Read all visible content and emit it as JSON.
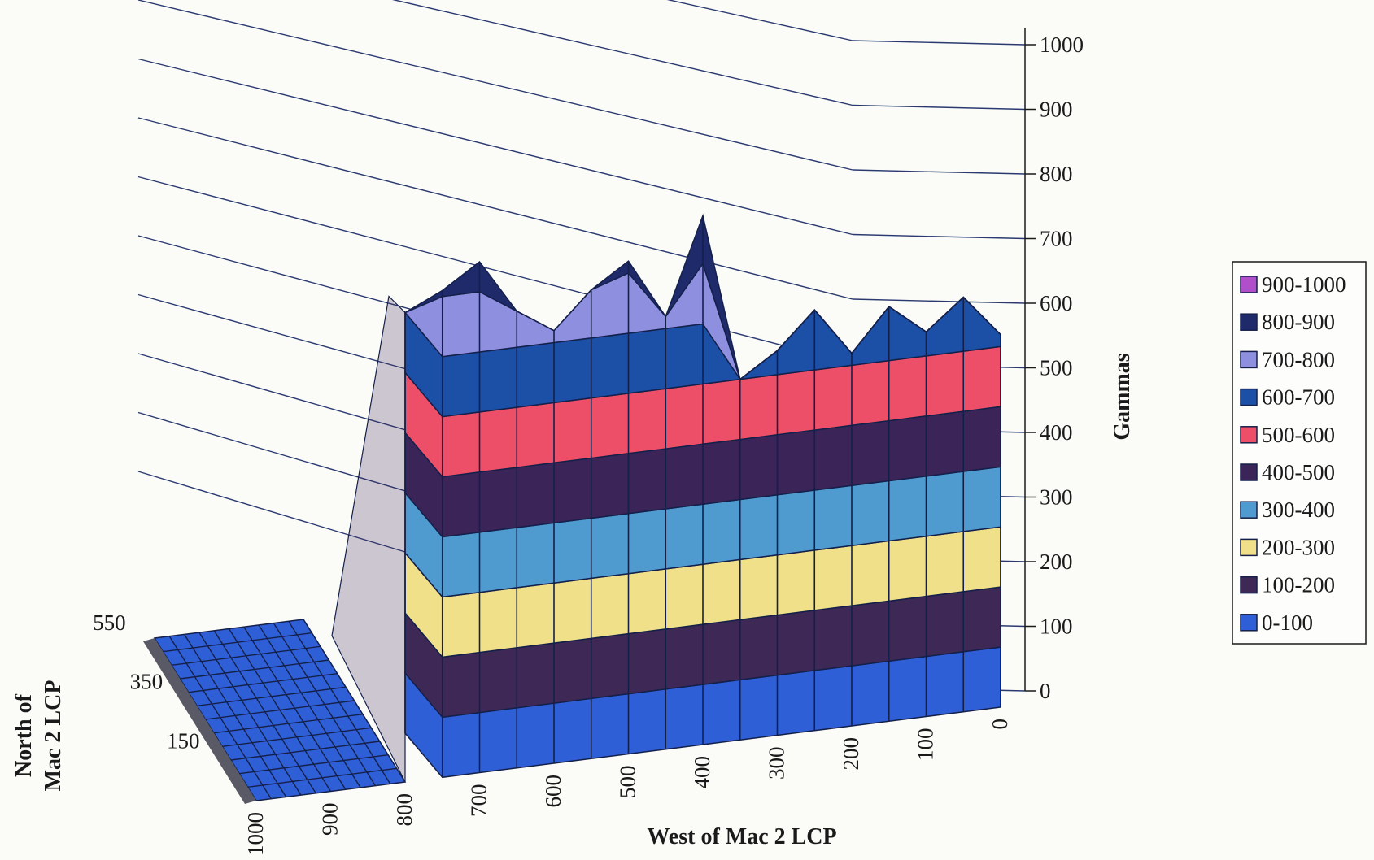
{
  "chart_data": {
    "type": "surface",
    "title": "",
    "zlabel": "Gammas",
    "xlabel": "West of Mac 2 LCP",
    "ylabel_lines": [
      "North of",
      "Mac 2 LCP"
    ],
    "z_ticks": [
      0,
      100,
      200,
      300,
      400,
      500,
      600,
      700,
      800,
      900,
      1000
    ],
    "zlim": [
      0,
      1000
    ],
    "x_ticks": [
      1000,
      900,
      800,
      700,
      600,
      500,
      400,
      300,
      200,
      100,
      0
    ],
    "y_ticks": [
      150,
      350,
      550
    ],
    "grid": true,
    "legend_position": "right",
    "bands": [
      {
        "label": "900-1000",
        "color": "#b04fc9"
      },
      {
        "label": "800-900",
        "color": "#1f2a6b"
      },
      {
        "label": "700-800",
        "color": "#8f8fe0"
      },
      {
        "label": "600-700",
        "color": "#1c4fa6"
      },
      {
        "label": "500-600",
        "color": "#ee4f68"
      },
      {
        "label": "400-500",
        "color": "#3a2458"
      },
      {
        "label": "300-400",
        "color": "#4f9bd0"
      },
      {
        "label": "200-300",
        "color": "#f0e08a"
      },
      {
        "label": "100-200",
        "color": "#3e2856"
      },
      {
        "label": "0-100",
        "color": "#2f5fd6"
      }
    ],
    "front_profile": {
      "x": [
        800,
        750,
        700,
        650,
        600,
        550,
        500,
        450,
        400,
        350,
        300,
        250,
        200,
        150,
        100,
        50,
        0
      ],
      "z": [
        700,
        810,
        850,
        760,
        720,
        780,
        820,
        720,
        880,
        600,
        640,
        700,
        620,
        690,
        640,
        690,
        620
      ]
    }
  }
}
